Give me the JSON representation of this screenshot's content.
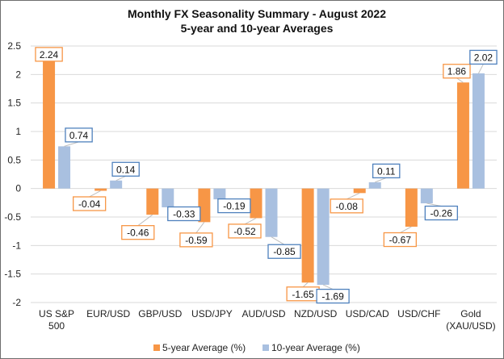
{
  "chart_data": {
    "type": "bar",
    "title": "Monthly FX Seasonality Summary - August 2022",
    "subtitle": "5-year and 10-year Averages",
    "xlabel": "",
    "ylabel": "",
    "ylim": [
      -2,
      2.5
    ],
    "yticks": [
      2.5,
      2,
      1.5,
      1,
      0.5,
      0,
      -0.5,
      -1,
      -1.5,
      -2
    ],
    "ytick_labels": [
      "2.5",
      "2",
      "1.5",
      "1",
      "0.5",
      "0",
      "-0.5",
      "-1",
      "-1.5",
      "-2"
    ],
    "grid": true,
    "legend_position": "bottom",
    "categories": [
      [
        "US S&P",
        "500"
      ],
      [
        "EUR/USD"
      ],
      [
        "GBP/USD"
      ],
      [
        "USD/JPY"
      ],
      [
        "AUD/USD"
      ],
      [
        "NZD/USD"
      ],
      [
        "USD/CAD"
      ],
      [
        "USD/CHF"
      ],
      [
        "Gold",
        "(XAU/USD)"
      ]
    ],
    "series": [
      {
        "name": "5-year Average (%)",
        "color": "#f79646",
        "label_border": "#f79646",
        "values": [
          2.24,
          -0.04,
          -0.46,
          -0.59,
          -0.52,
          -1.65,
          -0.08,
          -0.67,
          1.86
        ],
        "labels": [
          "2.24",
          "-0.04",
          "-0.46",
          "-0.59",
          "-0.52",
          "-1.65",
          "-0.08",
          "-0.67",
          "1.86"
        ]
      },
      {
        "name": "10-year Average (%)",
        "color": "#a9c0e0",
        "label_border": "#4f81bd",
        "values": [
          0.74,
          0.14,
          -0.33,
          -0.19,
          -0.85,
          -1.69,
          0.11,
          -0.26,
          2.02
        ],
        "labels": [
          "0.74",
          "0.14",
          "-0.33",
          "-0.19",
          "-0.85",
          "-1.69",
          "0.11",
          "-0.26",
          "2.02"
        ]
      }
    ]
  }
}
